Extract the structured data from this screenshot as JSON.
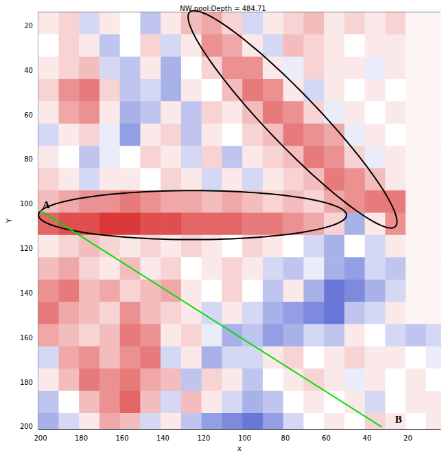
{
  "chart_data": {
    "type": "heatmap",
    "title": "NW pool:Depth = 484.71",
    "x_label": "x",
    "y_label": "Y",
    "xlim": [
      201,
      4
    ],
    "ylim": [
      201,
      14
    ],
    "xticks": [
      20,
      40,
      60,
      80,
      100,
      120,
      140,
      160,
      180,
      200
    ],
    "yticks": [
      20,
      40,
      60,
      80,
      100,
      120,
      140,
      160,
      180,
      200
    ],
    "cells": {
      "x": [
        196,
        186,
        176,
        166,
        156,
        146,
        136,
        126,
        116,
        106,
        96,
        86,
        76,
        66,
        56,
        46,
        36,
        26,
        16,
        6
      ],
      "y": [
        19,
        29,
        39,
        49,
        59,
        69,
        79,
        89,
        99,
        109,
        119,
        129,
        139,
        149,
        159,
        169,
        179,
        189,
        199
      ],
      "values": [
        [
          0.1,
          0.2,
          -0.2,
          0.1,
          0.0,
          -0.3,
          0.1,
          0.3,
          0.4,
          0.2,
          -0.2,
          0.1,
          0.2,
          0.3,
          0.1,
          0.2,
          0.1,
          0.2,
          0.05,
          0.05
        ],
        [
          0.0,
          0.2,
          0.1,
          -0.3,
          0.0,
          0.2,
          -0.2,
          0.1,
          0.5,
          0.4,
          0.1,
          -0.2,
          0.3,
          0.2,
          0.1,
          0.0,
          0.1,
          0.1,
          0.05,
          0.05
        ],
        [
          0.1,
          0.2,
          0.3,
          -0.2,
          -0.3,
          0.1,
          -0.4,
          0.0,
          0.2,
          0.5,
          0.5,
          0.1,
          -0.1,
          0.2,
          0.1,
          0.1,
          -0.1,
          0.1,
          0.05,
          0.05
        ],
        [
          0.2,
          0.5,
          0.6,
          0.2,
          -0.3,
          -0.2,
          -0.4,
          0.1,
          0.0,
          0.3,
          0.6,
          0.5,
          0.1,
          -0.2,
          0.1,
          0.0,
          0.1,
          0.0,
          0.05,
          0.05
        ],
        [
          0.1,
          0.4,
          0.5,
          0.1,
          -0.4,
          -0.3,
          0.1,
          -0.3,
          0.2,
          0.1,
          0.3,
          0.6,
          0.5,
          0.2,
          -0.1,
          0.1,
          0.0,
          0.1,
          0.05,
          0.05
        ],
        [
          -0.2,
          0.1,
          0.2,
          -0.1,
          -0.5,
          0.1,
          0.2,
          -0.3,
          0.1,
          0.0,
          0.2,
          0.3,
          0.6,
          0.5,
          0.4,
          -0.1,
          0.1,
          0.0,
          0.05,
          0.05
        ],
        [
          0.1,
          0.0,
          -0.3,
          -0.1,
          0.0,
          0.2,
          0.1,
          -0.2,
          0.2,
          -0.3,
          0.1,
          0.2,
          0.3,
          0.6,
          0.5,
          0.2,
          -0.1,
          0.1,
          0.05,
          0.05
        ],
        [
          0.2,
          0.1,
          -0.2,
          0.1,
          0.1,
          0.0,
          0.2,
          0.1,
          -0.2,
          0.1,
          -0.2,
          0.1,
          0.2,
          0.3,
          0.6,
          0.5,
          0.3,
          0.1,
          0.05,
          0.05
        ],
        [
          0.3,
          0.4,
          0.5,
          0.5,
          0.6,
          0.5,
          0.4,
          0.4,
          0.3,
          0.4,
          0.3,
          0.2,
          0.3,
          0.2,
          0.4,
          0.5,
          0.6,
          0.6,
          0.05,
          0.05
        ],
        [
          0.7,
          0.8,
          0.8,
          0.9,
          0.9,
          0.8,
          0.8,
          0.7,
          0.7,
          0.7,
          0.6,
          0.6,
          0.5,
          0.4,
          0.2,
          -0.4,
          0.1,
          0.5,
          0.05,
          0.05
        ],
        [
          0.1,
          0.2,
          0.3,
          0.2,
          0.1,
          0.2,
          0.1,
          0.2,
          0.1,
          0.0,
          0.2,
          0.1,
          0.0,
          -0.2,
          -0.4,
          0.0,
          -0.2,
          0.1,
          0.05,
          0.05
        ],
        [
          0.3,
          0.4,
          0.2,
          0.1,
          0.3,
          0.1,
          0.2,
          0.0,
          0.1,
          0.2,
          0.1,
          -0.2,
          -0.3,
          -0.1,
          -0.4,
          -0.5,
          -0.2,
          -0.3,
          0.05,
          0.05
        ],
        [
          0.5,
          0.6,
          0.3,
          0.4,
          0.2,
          0.3,
          0.4,
          0.1,
          0.0,
          0.2,
          0.0,
          -0.3,
          0.1,
          -0.4,
          -0.7,
          -0.6,
          -0.4,
          -0.2,
          0.05,
          0.05
        ],
        [
          0.6,
          0.4,
          0.3,
          0.2,
          0.5,
          0.3,
          0.2,
          0.1,
          -0.2,
          0.1,
          -0.2,
          -0.4,
          -0.5,
          -0.6,
          -0.7,
          -0.3,
          -0.2,
          0.1,
          0.05,
          0.05
        ],
        [
          0.4,
          0.3,
          0.2,
          0.3,
          0.6,
          0.5,
          0.1,
          0.2,
          -0.1,
          -0.4,
          -0.3,
          -0.5,
          -0.4,
          -0.2,
          -0.3,
          0.1,
          0.0,
          -0.2,
          -0.3,
          -0.2
        ],
        [
          -0.2,
          0.4,
          0.5,
          0.3,
          0.5,
          0.6,
          -0.2,
          0.1,
          -0.4,
          -0.2,
          -0.2,
          0.1,
          0.2,
          0.0,
          0.1,
          0.2,
          0.1,
          0.1,
          0.0,
          -0.1
        ],
        [
          0.1,
          0.3,
          0.6,
          0.5,
          0.6,
          0.4,
          0.3,
          -0.3,
          0.2,
          0.1,
          -0.3,
          0.0,
          0.1,
          0.2,
          0.1,
          -0.1,
          0.1,
          0.0,
          0.1,
          0.0
        ],
        [
          -0.3,
          0.0,
          0.3,
          0.5,
          0.7,
          0.3,
          -0.2,
          0.3,
          0.1,
          -0.2,
          -0.4,
          -0.3,
          0.0,
          0.1,
          0.0,
          0.1,
          -0.2,
          0.0,
          0.1,
          0.1
        ],
        [
          -0.4,
          -0.2,
          0.1,
          0.4,
          0.3,
          -0.2,
          0.1,
          -0.3,
          -0.5,
          -0.6,
          -0.7,
          -0.5,
          -0.2,
          0.0,
          0.1,
          0.0,
          0.2,
          0.1,
          0.0,
          0.1
        ]
      ]
    },
    "color_range": [
      -1,
      1
    ],
    "annotations": [
      {
        "type": "ellipse",
        "from": [
          201,
          105
        ],
        "to": [
          50,
          105
        ],
        "half_width": 11,
        "color": "#000000"
      },
      {
        "type": "ellipse",
        "from": [
          127,
          14
        ],
        "to": [
          26,
          110
        ],
        "half_width": 12,
        "color": "#000000"
      },
      {
        "type": "line",
        "from": [
          200,
          103
        ],
        "to": [
          33,
          200
        ],
        "label_start": "A",
        "label_end": "B",
        "color": "#00e000"
      }
    ]
  }
}
